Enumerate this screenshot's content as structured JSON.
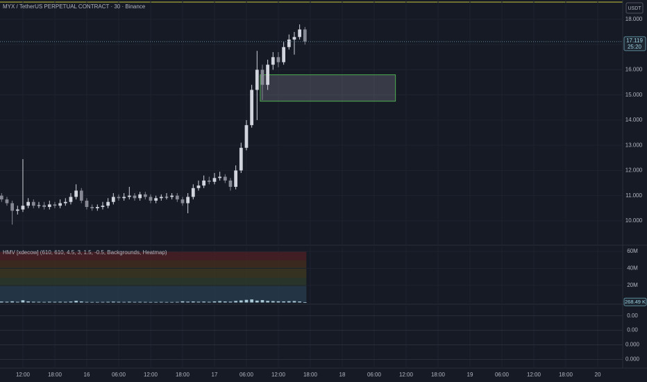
{
  "chart_data": [
    {
      "type": "candlestick",
      "title": "MYX / TetherUS PERPETUAL CONTRACT · 30 · Binance",
      "currency": "USDT",
      "x": [
        -4,
        -3,
        -2,
        -1,
        0,
        1,
        2,
        3,
        4,
        5,
        6,
        7,
        8,
        9,
        10,
        11,
        12,
        13,
        14,
        15,
        16,
        17,
        18,
        19,
        20,
        21,
        22,
        23,
        24,
        25,
        26,
        27,
        28,
        29,
        30,
        31,
        32,
        33,
        34,
        35,
        36,
        37,
        38,
        39,
        40,
        41,
        42,
        43,
        44,
        45,
        46,
        47,
        48,
        49,
        50,
        51,
        52,
        53
      ],
      "open": [
        11.0,
        10.85,
        10.7,
        10.4,
        10.45,
        10.6,
        10.75,
        10.6,
        10.62,
        10.55,
        10.65,
        10.6,
        10.7,
        10.75,
        10.95,
        11.2,
        10.8,
        10.55,
        10.5,
        10.55,
        10.6,
        10.75,
        10.95,
        10.9,
        10.95,
        11.0,
        10.9,
        11.05,
        10.95,
        10.8,
        10.9,
        10.95,
        10.95,
        11.0,
        10.85,
        10.7,
        10.95,
        11.3,
        11.4,
        11.6,
        11.55,
        11.7,
        11.75,
        11.6,
        11.35,
        12.0,
        12.9,
        13.8,
        15.2,
        16.0,
        15.4,
        16.2,
        16.5,
        16.3,
        16.9,
        17.2,
        17.3,
        17.6
      ],
      "high": [
        11.1,
        10.95,
        10.8,
        10.6,
        12.45,
        10.9,
        10.85,
        10.75,
        10.75,
        10.8,
        10.75,
        10.85,
        10.9,
        11.1,
        11.45,
        11.3,
        10.9,
        10.65,
        10.65,
        10.75,
        10.9,
        11.1,
        11.05,
        11.1,
        11.35,
        11.1,
        11.15,
        11.15,
        11.05,
        11.0,
        11.05,
        11.1,
        11.1,
        11.1,
        10.95,
        11.1,
        11.45,
        11.6,
        11.8,
        11.75,
        11.9,
        11.95,
        11.85,
        11.7,
        12.2,
        13.1,
        14.0,
        15.4,
        16.75,
        16.2,
        16.4,
        16.7,
        16.7,
        17.1,
        17.4,
        17.5,
        17.8,
        17.7
      ],
      "low": [
        10.75,
        10.6,
        9.85,
        10.25,
        10.35,
        10.5,
        10.5,
        10.5,
        10.45,
        10.45,
        10.5,
        10.5,
        10.6,
        10.65,
        10.85,
        10.7,
        10.45,
        10.4,
        10.4,
        10.45,
        10.5,
        10.65,
        10.8,
        10.8,
        10.85,
        10.8,
        10.8,
        10.85,
        10.7,
        10.7,
        10.8,
        10.85,
        10.85,
        10.75,
        10.6,
        10.3,
        10.85,
        11.2,
        11.3,
        11.45,
        11.45,
        11.6,
        11.5,
        11.2,
        11.25,
        11.9,
        12.8,
        13.7,
        14.0,
        14.8,
        15.2,
        16.0,
        16.1,
        16.2,
        16.8,
        16.6,
        17.2,
        17.0
      ],
      "close": [
        10.85,
        10.7,
        10.4,
        10.45,
        10.6,
        10.75,
        10.6,
        10.62,
        10.55,
        10.65,
        10.6,
        10.7,
        10.75,
        10.95,
        11.2,
        10.8,
        10.55,
        10.5,
        10.55,
        10.6,
        10.75,
        10.95,
        10.9,
        10.95,
        11.0,
        10.9,
        11.05,
        10.95,
        10.8,
        10.9,
        10.95,
        10.95,
        11.0,
        10.85,
        10.7,
        10.95,
        11.3,
        11.4,
        11.6,
        11.55,
        11.7,
        11.75,
        11.6,
        11.35,
        12.0,
        12.9,
        13.8,
        15.2,
        16.0,
        15.4,
        16.2,
        16.5,
        16.3,
        16.9,
        17.2,
        17.3,
        17.6,
        17.119
      ],
      "up_color": "#d1d4dc",
      "down_color": "#868993",
      "xlim": [
        -4.3,
        112.7
      ],
      "xticks": [
        {
          "value": 0,
          "label": "12:00"
        },
        {
          "value": 6,
          "label": "18:00"
        },
        {
          "value": 12,
          "label": "16"
        },
        {
          "value": 18,
          "label": "06:00"
        },
        {
          "value": 24,
          "label": "12:00"
        },
        {
          "value": 30,
          "label": "18:00"
        },
        {
          "value": 36,
          "label": "17"
        },
        {
          "value": 42,
          "label": "06:00"
        },
        {
          "value": 48,
          "label": "12:00"
        },
        {
          "value": 54,
          "label": "18:00"
        },
        {
          "value": 60,
          "label": "18"
        },
        {
          "value": 66,
          "label": "06:00"
        },
        {
          "value": 72,
          "label": "12:00"
        },
        {
          "value": 78,
          "label": "18:00"
        },
        {
          "value": 84,
          "label": "19"
        },
        {
          "value": 90,
          "label": "06:00"
        },
        {
          "value": 96,
          "label": "12:00"
        },
        {
          "value": 102,
          "label": "18:00"
        },
        {
          "value": 108,
          "label": "20"
        }
      ],
      "ylim": [
        9.06,
        18.77
      ],
      "yticks": [
        {
          "value": 10,
          "label": "10.000"
        },
        {
          "value": 11,
          "label": "11.000"
        },
        {
          "value": 12,
          "label": "12.000"
        },
        {
          "value": 13,
          "label": "13.000"
        },
        {
          "value": 14,
          "label": "14.000"
        },
        {
          "value": 15,
          "label": "15.000"
        },
        {
          "value": 16,
          "label": "16.000"
        },
        {
          "value": 17,
          "label": "17.000"
        },
        {
          "value": 18,
          "label": "18.000"
        }
      ],
      "last_price_label": "17.119",
      "countdown": "25:20",
      "rectangle": {
        "x": [
          44.6,
          70
        ],
        "y": [
          14.75,
          15.8
        ],
        "color": "#4caf50"
      },
      "grid": true
    },
    {
      "type": "bar",
      "title": "HMV [xdecow] (610, 610, 4.5, 3, 1.5, -0.5, Backgrounds, Heatmap)",
      "values": [
        1.1,
        0.9,
        1.4,
        0.8,
        2.6,
        1.3,
        0.9,
        0.8,
        0.7,
        0.9,
        0.8,
        0.9,
        0.8,
        1.1,
        2.0,
        1.2,
        0.7,
        0.6,
        0.6,
        0.7,
        0.8,
        1.0,
        0.8,
        0.7,
        0.9,
        0.7,
        0.8,
        0.7,
        0.6,
        0.6,
        0.7,
        0.6,
        0.6,
        0.7,
        1.4,
        1.0,
        1.2,
        0.9,
        1.1,
        0.8,
        1.3,
        1.6,
        1.2,
        1.0,
        1.8,
        2.4,
        3.1,
        3.6,
        2.2,
        2.8,
        1.9,
        1.6,
        1.4,
        1.3,
        1.5,
        1.7,
        1.2,
        0.26849
      ],
      "color": "#a9c9d6",
      "last_label": "268.49 K",
      "ylim": [
        -1.2,
        65.7
      ],
      "yticks": [
        {
          "value": 20,
          "label": "20M"
        },
        {
          "value": 40,
          "label": "40M"
        },
        {
          "value": 60,
          "label": "60M"
        }
      ],
      "bands": [
        {
          "from": 0,
          "to": 19.2,
          "color": "#26394a"
        },
        {
          "from": 19.2,
          "to": 29,
          "color": "#2c3a2a"
        },
        {
          "from": 29,
          "to": 41,
          "color": "#3b3722"
        },
        {
          "from": 41,
          "to": 49.4,
          "color": "#412d1f"
        },
        {
          "from": 49.4,
          "to": 60,
          "color": "#482024"
        }
      ]
    },
    {
      "type": "pane",
      "ylim": [
        -6e-05,
        0.00037
      ],
      "yticks": [
        {
          "value": 0.0003,
          "label": "0.00"
        },
        {
          "value": 0.0002,
          "label": "0.00"
        },
        {
          "value": 0.0001,
          "label": "0.000"
        },
        {
          "value": 0,
          "label": "0.000"
        }
      ]
    }
  ]
}
